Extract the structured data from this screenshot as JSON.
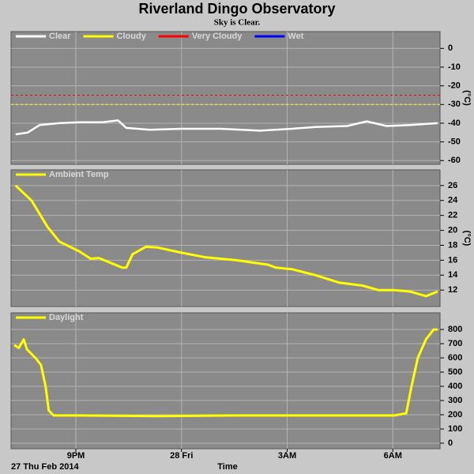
{
  "title": "Riverland Dingo Observatory",
  "subtitle": "Sky is Clear.",
  "chart_data": [
    {
      "type": "line",
      "ylabel": "(°C)",
      "grid": true,
      "xlim": [
        19.16,
        31.34
      ],
      "xticks": [
        {
          "value": 21,
          "label": "9PM"
        },
        {
          "value": 24,
          "label": "28 Fri"
        },
        {
          "value": 27,
          "label": "3AM"
        },
        {
          "value": 30,
          "label": "6AM"
        }
      ],
      "ylim": [
        -62,
        9
      ],
      "yticks": [
        0,
        -10,
        -20,
        -30,
        -40,
        -50,
        -60
      ],
      "x": [
        19.29,
        19.63,
        19.97,
        20.53,
        21.09,
        21.76,
        22.2,
        22.43,
        23.1,
        24.0,
        25.11,
        26.23,
        27.13,
        27.8,
        28.7,
        29.26,
        29.82,
        30.49,
        31.27
      ],
      "series": [
        {
          "name": "Clear",
          "color": "#ffffff",
          "values": [
            -46,
            -45,
            -41,
            -40,
            -39.5,
            -39.5,
            -38.5,
            -42.5,
            -43.5,
            -43,
            -43,
            -44,
            -43,
            -42,
            -41.5,
            -39,
            -41.5,
            -41,
            -40
          ]
        },
        {
          "name": "Cloudy",
          "color": "#ffff00",
          "threshold": -30
        },
        {
          "name": "Very Cloudy",
          "color": "#ff0000",
          "threshold": -25
        },
        {
          "name": "Wet",
          "color": "#0000ff"
        }
      ]
    },
    {
      "type": "line",
      "ylabel": "(°C)",
      "grid": true,
      "xlim": [
        19.16,
        31.34
      ],
      "xticks": [
        {
          "value": 21,
          "label": "9PM"
        },
        {
          "value": 24,
          "label": "28 Fri"
        },
        {
          "value": 27,
          "label": "3AM"
        },
        {
          "value": 30,
          "label": "6AM"
        }
      ],
      "ylim": [
        9.8,
        28.1
      ],
      "yticks": [
        26,
        24,
        22,
        20,
        18,
        16,
        14,
        12
      ],
      "x": [
        19.29,
        19.74,
        20.19,
        20.53,
        21.09,
        21.42,
        21.65,
        22.32,
        22.43,
        22.61,
        22.99,
        23.32,
        24.0,
        24.67,
        25.56,
        26.46,
        26.68,
        27.13,
        27.8,
        28.47,
        29.14,
        29.59,
        30.04,
        30.49,
        30.94,
        31.27
      ],
      "series": [
        {
          "name": "Ambient Temp",
          "color": "#ffff00",
          "values": [
            26,
            24,
            20.5,
            18.5,
            17.2,
            16.2,
            16.3,
            15,
            15,
            16.8,
            17.8,
            17.7,
            17,
            16.4,
            16,
            15.4,
            15,
            14.8,
            14,
            13,
            12.6,
            12,
            12,
            11.8,
            11.2,
            11.8
          ]
        }
      ]
    },
    {
      "type": "line",
      "grid": true,
      "xlabel": "Time",
      "date_label": "27 Thu Feb 2014",
      "xlim": [
        19.16,
        31.34
      ],
      "xticks": [
        {
          "value": 21,
          "label": "9PM"
        },
        {
          "value": 24,
          "label": "28 Fri"
        },
        {
          "value": 27,
          "label": "3AM"
        },
        {
          "value": 30,
          "label": "6AM"
        }
      ],
      "ylim": [
        -39,
        917
      ],
      "yticks": [
        800,
        700,
        600,
        500,
        400,
        300,
        200,
        100,
        0
      ],
      "x": [
        19.25,
        19.38,
        19.52,
        19.61,
        19.85,
        20.01,
        20.14,
        20.23,
        20.37,
        21.09,
        23.32,
        25.56,
        27.8,
        30.04,
        30.38,
        30.53,
        30.71,
        30.94,
        31.16,
        31.27
      ],
      "series": [
        {
          "name": "Daylight",
          "color": "#ffff00",
          "values": [
            690,
            670,
            730,
            660,
            600,
            550,
            400,
            230,
            195,
            195,
            190,
            195,
            195,
            195,
            210,
            400,
            600,
            730,
            800,
            800
          ]
        }
      ]
    }
  ]
}
